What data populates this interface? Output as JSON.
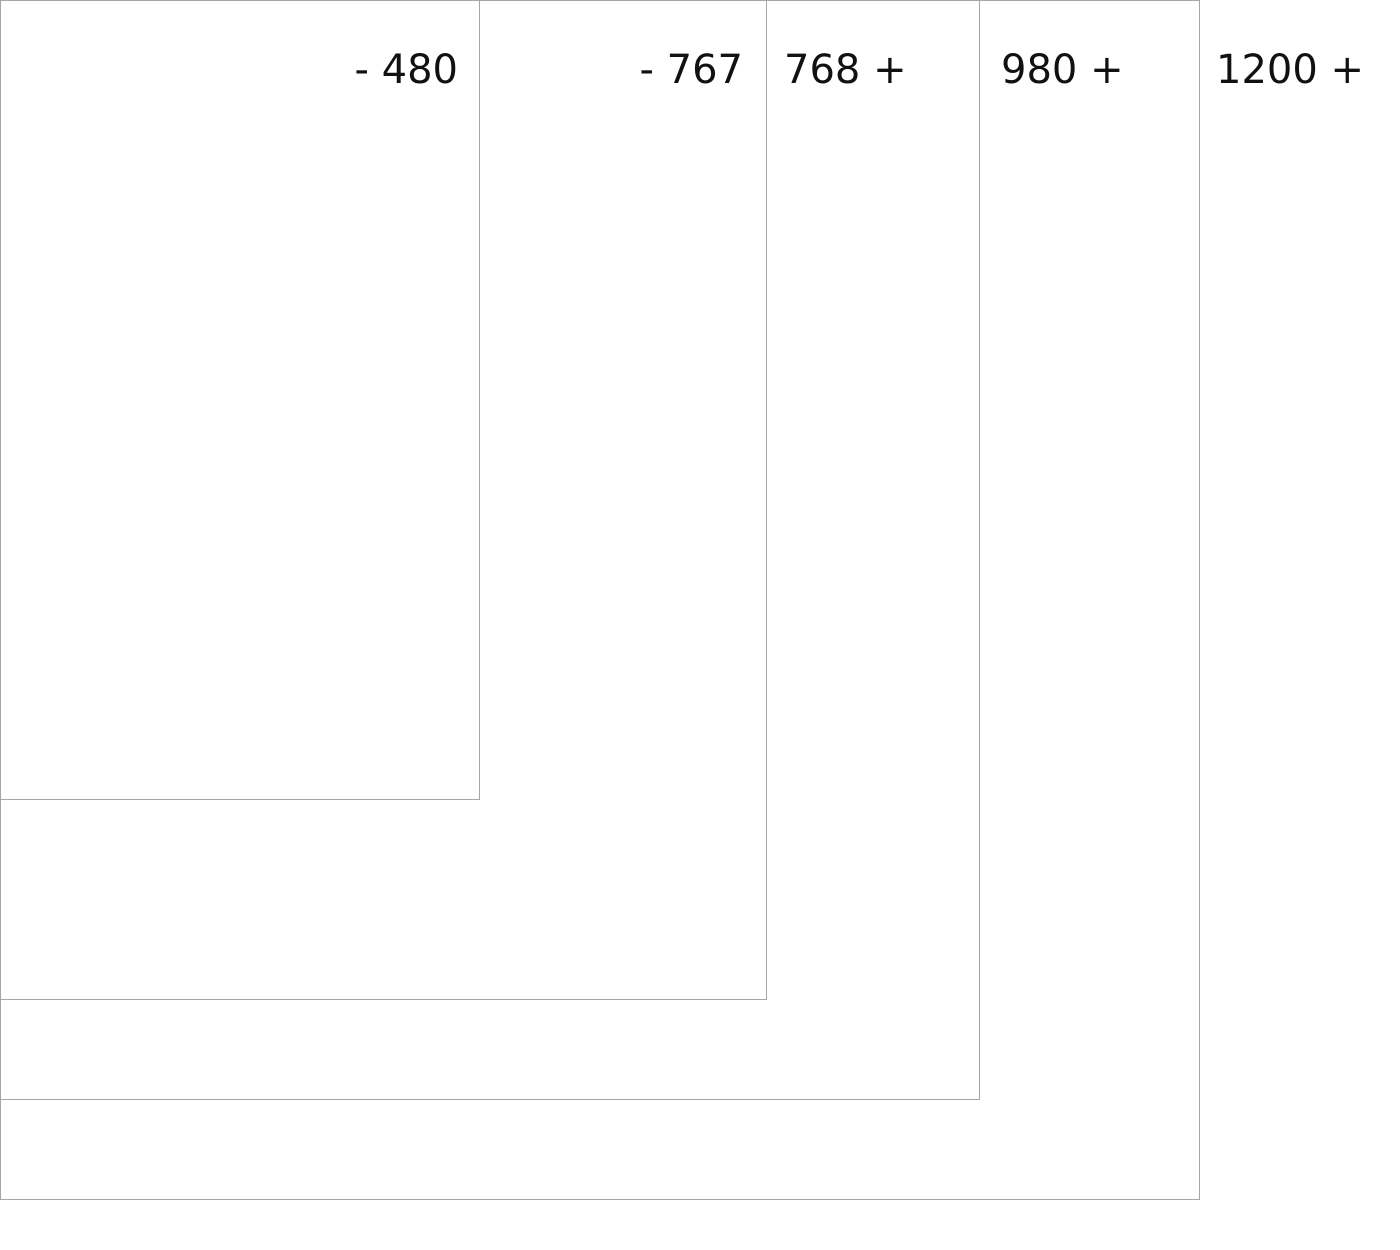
{
  "breakpoints": [
    {
      "label": "- 480"
    },
    {
      "label": "- 767"
    },
    {
      "label": "768 +"
    },
    {
      "label": "980 +"
    },
    {
      "label": "1200 +"
    }
  ],
  "colors": {
    "frame_border": "#a6a6a6",
    "text": "#111111",
    "background": "#ffffff"
  }
}
